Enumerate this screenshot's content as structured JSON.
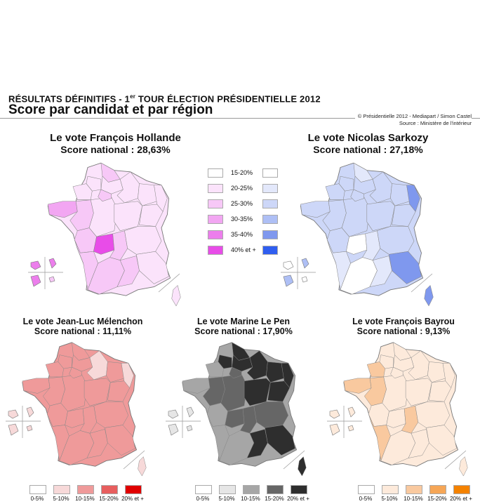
{
  "header": {
    "kicker": "RÉSULTATS DÉFINITIFS - 1",
    "kicker_sup": "er",
    "kicker_rest": " TOUR ÉLECTION PRÉSIDENTIELLE 2012",
    "title": "Score par candidat et par région",
    "credit": "© Présidentielle 2012 - Mediapart / Simon Castel",
    "source": "Source : Ministère de l'intérieur"
  },
  "maps": [
    {
      "id": "hollande",
      "name": "Le vote François Hollande",
      "score": "Score national : 28,63%",
      "palette": "pink"
    },
    {
      "id": "sarkozy",
      "name": "Le vote Nicolas Sarkozy",
      "score": "Score national : 27,18%",
      "palette": "blue"
    },
    {
      "id": "melenchon",
      "name": "Le vote Jean-Luc Mélenchon",
      "score": "Score national : 11,11%",
      "palette": "red"
    },
    {
      "id": "lepen",
      "name": "Le vote Marine Le Pen",
      "score": "Score national : 17,90%",
      "palette": "grey"
    },
    {
      "id": "bayrou",
      "name": "Le vote François Bayrou",
      "score": "Score national : 9,13%",
      "palette": "orange"
    }
  ],
  "legend_top": {
    "labels": [
      "15-20%",
      "20-25%",
      "25-30%",
      "30-35%",
      "35-40%",
      "40% et +"
    ],
    "pink": [
      "#ffffff",
      "#fbe3fb",
      "#f7c8f7",
      "#f2a6f2",
      "#ec7eec",
      "#e84ce8"
    ],
    "blue": [
      "#ffffff",
      "#e3e8fb",
      "#cdd7f8",
      "#aebff5",
      "#7f98ee",
      "#2f5ef0"
    ]
  },
  "legend_bottom": {
    "labels": [
      "0-5%",
      "5-10%",
      "10-15%",
      "15-20%",
      "20% et +"
    ],
    "red": [
      "#ffffff",
      "#f7d9d9",
      "#ef9a9a",
      "#e75e5e",
      "#e00000"
    ],
    "grey": [
      "#ffffff",
      "#e6e6e6",
      "#a6a6a6",
      "#666666",
      "#2e2e2e"
    ],
    "orange": [
      "#ffffff",
      "#fdeadb",
      "#f9c99f",
      "#f6a656",
      "#f48200"
    ]
  },
  "colors": {
    "pink_base": "#f7c8f7",
    "pink_light": "#fbe3fb",
    "pink_mid": "#f2a6f2",
    "pink_dark": "#ec7eec",
    "pink_max": "#e84ce8",
    "blue_base": "#cdd7f8",
    "blue_light": "#e3e8fb",
    "blue_mid": "#aebff5",
    "blue_dark": "#7f98ee",
    "blue_white": "#ffffff",
    "red_base": "#ef9a9a",
    "red_light": "#f7d9d9",
    "grey_base": "#a6a6a6",
    "grey_dark": "#666666",
    "grey_darkest": "#2e2e2e",
    "grey_light": "#e6e6e6",
    "orange_base": "#fdeadb",
    "orange_mid": "#f9c99f",
    "orange_dark": "#f6a656"
  }
}
